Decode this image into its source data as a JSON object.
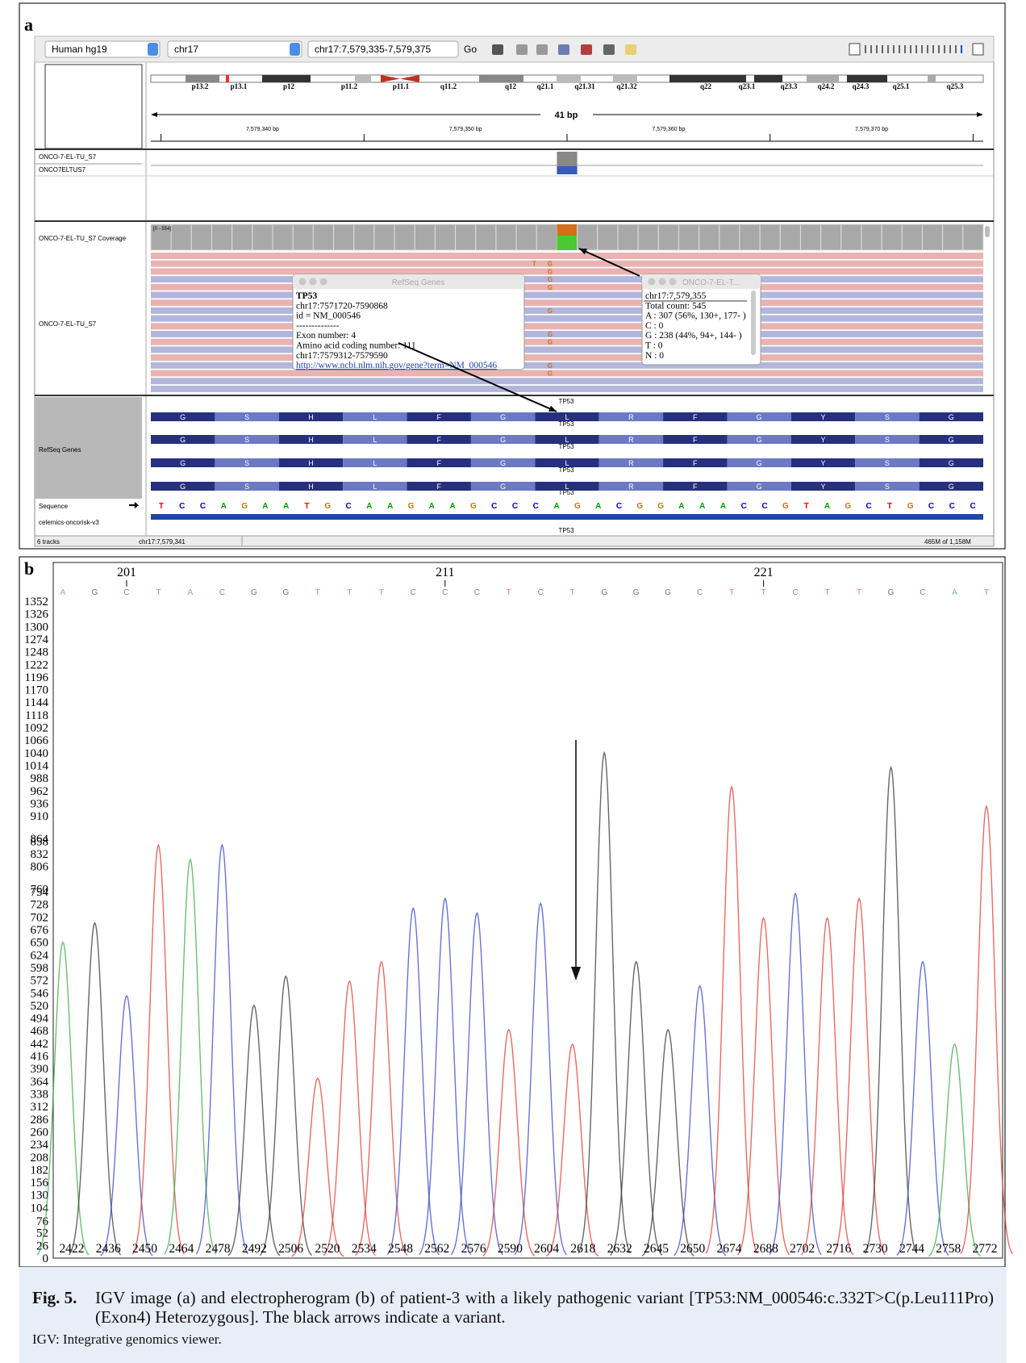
{
  "panel_labels": [
    "a",
    "b"
  ],
  "igv": {
    "toolbar": {
      "genome": "Human hg19",
      "chromosome": "chr17",
      "locus": "chr17:7,579,335-7,579,375",
      "go": "Go"
    },
    "cytobands": [
      "p13.2",
      "p13.1",
      "p12",
      "p11.2",
      "p11.1",
      "q11.2",
      "q12",
      "q21.1",
      "q21.31",
      "q21.32",
      "q22",
      "q23.1",
      "q23.3",
      "q24.2",
      "q24.3",
      "q25.1",
      "q25.3"
    ],
    "ruler": {
      "span": "41 bp",
      "ticks": [
        "7,579,340 bp",
        "7,579,350 bp",
        "7,579,360 bp",
        "7,579,370 bp"
      ]
    },
    "tracks": [
      "ONCO-7-EL-TU_S7",
      "ONCO7ELTUS7",
      "ONCO-7-EL-TU_S7 Coverage",
      "ONCO-7-EL-TU_S7",
      "RefSeq Genes",
      "Sequence",
      "celemics-oncorisk-v3"
    ],
    "coverage_range": "[0 - 554]",
    "read_rows": [
      null,
      "TG",
      "G",
      "G",
      "G",
      null,
      null,
      "G",
      null,
      null,
      "G",
      "G",
      null,
      null,
      "G",
      "G",
      null,
      null
    ],
    "refseq_popup": {
      "title": "RefSeq Genes",
      "lines": [
        "TP53",
        "chr17:7571720-7590868",
        "id = NM_000546",
        "--------------",
        "Exon number: 4",
        "Amino acid coding number: 111",
        "chr17:7579312-7579590"
      ],
      "link": "http://www.ncbi.nlm.nih.gov/gene?term=NM_000546"
    },
    "count_popup": {
      "title": "ONCO-7-EL-T...",
      "lines": [
        "chr17:7,579,355",
        "Total count: 545",
        "A : 307 (56%, 130+, 177- )",
        "C : 0",
        "G : 238 (44%, 94+, 144- )",
        "T : 0",
        "N : 0"
      ]
    },
    "gene_label": "TP53",
    "amino_acids": [
      "G",
      "S",
      "H",
      "L",
      "F",
      "G",
      "L",
      "R",
      "F",
      "G",
      "Y",
      "S",
      "G"
    ],
    "sequence": [
      "T",
      "C",
      "C",
      "A",
      "G",
      "A",
      "A",
      "T",
      "G",
      "C",
      "A",
      "A",
      "G",
      "A",
      "A",
      "G",
      "C",
      "C",
      "C",
      "A",
      "G",
      "A",
      "C",
      "G",
      "G",
      "A",
      "A",
      "A",
      "C",
      "C",
      "G",
      "T",
      "A",
      "G",
      "C",
      "T",
      "G",
      "C",
      "C",
      "C"
    ],
    "footer": [
      "6 tracks",
      "chr17:7,579,341",
      "465M of 1,158M"
    ]
  },
  "chart_data": {
    "type": "electropherogram",
    "ylim": [
      0,
      1352
    ],
    "yticks": [
      0,
      26,
      52,
      76,
      104,
      130,
      156,
      182,
      208,
      234,
      260,
      286,
      312,
      338,
      364,
      390,
      416,
      442,
      468,
      494,
      520,
      546,
      572,
      598,
      624,
      650,
      676,
      702,
      728,
      754,
      760,
      806,
      832,
      858,
      864,
      910,
      936,
      962,
      988,
      1014,
      1040,
      1066,
      1092,
      1118,
      1144,
      1170,
      1196,
      1222,
      1248,
      1274,
      1300,
      1326,
      1352
    ],
    "categories": [
      2422,
      2436,
      2450,
      2464,
      2478,
      2492,
      2506,
      2520,
      2534,
      2548,
      2562,
      2576,
      2590,
      2604,
      2618,
      2632,
      2645,
      2650,
      2674,
      2688,
      2702,
      2716,
      2730,
      2744,
      2758,
      2772
    ],
    "position_labels": [
      201,
      211,
      221
    ],
    "base_calls": [
      "A",
      "G",
      "C",
      "T",
      "A",
      "C",
      "G",
      "G",
      "T",
      "T",
      "T",
      "C",
      "C",
      "C",
      "T",
      "C",
      "T",
      "G",
      "G",
      "G",
      "C",
      "T",
      "T",
      "C",
      "T",
      "T",
      "G",
      "C",
      "A",
      "T"
    ],
    "base_colors": {
      "A": "#3aa843",
      "C": "#3344c8",
      "G": "#333333",
      "T": "#e0392f"
    },
    "peaks": {
      "values": [
        650,
        690,
        540,
        850,
        820,
        850,
        520,
        580,
        370,
        570,
        610,
        720,
        740,
        710,
        470,
        730,
        440,
        1040,
        610,
        470,
        560,
        970,
        700,
        750,
        700,
        740,
        1010,
        610,
        440,
        930
      ]
    }
  },
  "caption": {
    "label": "Fig. 5.",
    "text": "IGV image (a) and electropherogram (b) of patient-3 with a likely pathogenic variant [TP53:NM_000546:c.332T>C(p.Leu111Pro) (Exon4) Heterozygous]. The black arrows indicate a variant.",
    "note": "IGV: Integrative genomics viewer."
  }
}
